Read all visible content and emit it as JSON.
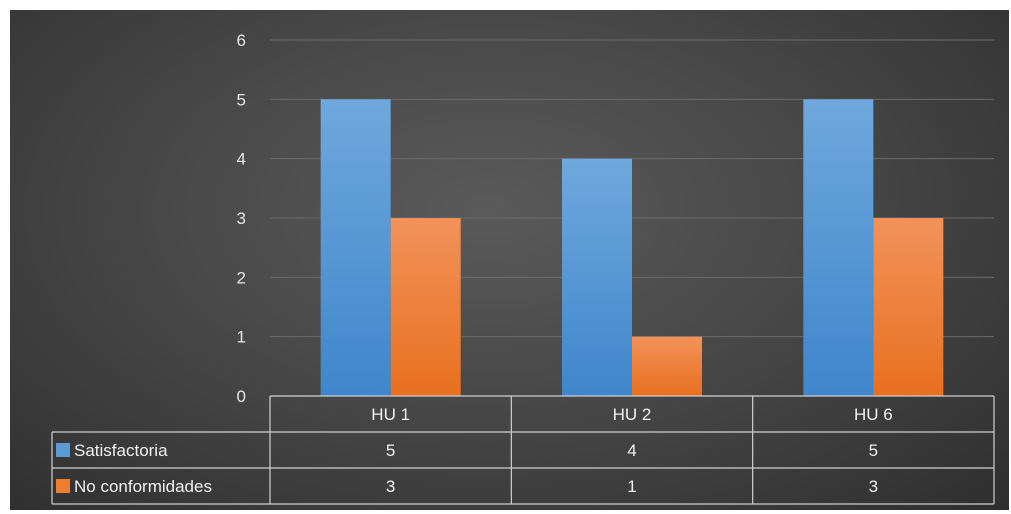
{
  "chart_data": {
    "type": "bar",
    "categories": [
      "HU 1",
      "HU 2",
      "HU 6"
    ],
    "series": [
      {
        "name": "Satisfactoria",
        "values": [
          5,
          4,
          5
        ],
        "color": "#5b9bd5"
      },
      {
        "name": "No conformidades",
        "values": [
          3,
          1,
          3
        ],
        "color": "#ed7d31"
      }
    ],
    "yticks": [
      "0",
      "1",
      "2",
      "3",
      "4",
      "5",
      "6"
    ],
    "ylim": [
      0,
      6
    ],
    "grid": true,
    "legend": "data-table",
    "data_table": true
  }
}
